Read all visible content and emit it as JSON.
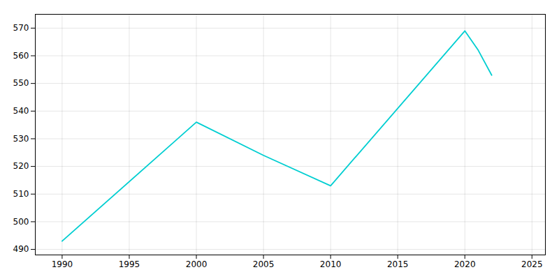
{
  "chart_data": {
    "type": "line",
    "x": [
      1990,
      2000,
      2005,
      2010,
      2020,
      2021,
      2022
    ],
    "values": [
      493,
      536,
      524,
      513,
      569,
      562,
      553
    ],
    "color": "#00CED1",
    "xlim": [
      1988,
      2026
    ],
    "xticks": [
      1990,
      1995,
      2000,
      2005,
      2010,
      2015,
      2020,
      2025
    ],
    "ylim": [
      488,
      575
    ],
    "yticks": [
      490,
      500,
      510,
      520,
      530,
      540,
      550,
      560,
      570
    ],
    "grid": true
  }
}
